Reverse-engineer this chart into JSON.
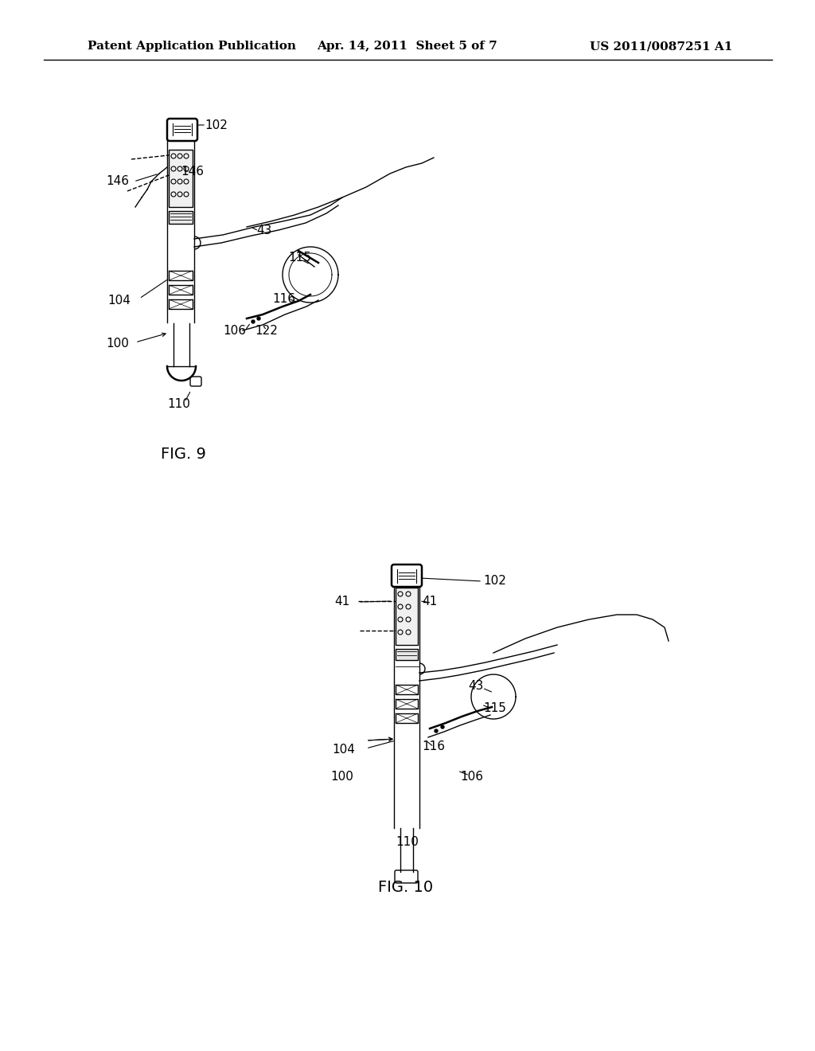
{
  "background_color": "#ffffff",
  "header_left": "Patent Application Publication",
  "header_center": "Apr. 14, 2011  Sheet 5 of 7",
  "header_right": "US 2011/0087251 A1",
  "fig9_label": "FIG. 9",
  "fig10_label": "FIG. 10",
  "header_font_size": 11,
  "label_font_size": 14,
  "ref_font_size": 11
}
